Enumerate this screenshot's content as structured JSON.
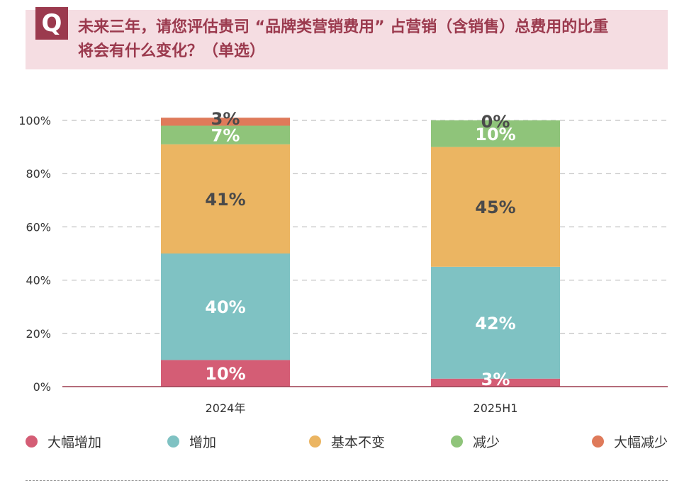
{
  "title": {
    "badge": "Q",
    "line1": "未来三年，请您评估贵司 “品牌类营销费用” 占营销（含销售）总费用的比重",
    "line2": "将会有什么变化？（单选）"
  },
  "chart_data": {
    "type": "bar",
    "stacked": true,
    "categories": [
      "2024年",
      "2025H1"
    ],
    "ylim": [
      0,
      100
    ],
    "yticks": [
      "0%",
      "20%",
      "40%",
      "60%",
      "80%",
      "100%"
    ],
    "grid": true,
    "legend_position": "bottom",
    "series": [
      {
        "name": "大幅增加",
        "values": [
          10,
          3
        ],
        "labels": [
          "10%",
          "3%"
        ],
        "color": "#d45d75",
        "label_color": "#ffffff"
      },
      {
        "name": "增加",
        "values": [
          40,
          42
        ],
        "labels": [
          "40%",
          "42%"
        ],
        "color": "#7fc2c3",
        "label_color": "#ffffff"
      },
      {
        "name": "基本不变",
        "values": [
          41,
          45
        ],
        "labels": [
          "41%",
          "45%"
        ],
        "color": "#ebb562",
        "label_color": "#4a4a4a"
      },
      {
        "name": "减少",
        "values": [
          7,
          10
        ],
        "labels": [
          "7%",
          "10%"
        ],
        "color": "#8fc47a",
        "label_color": "#ffffff"
      },
      {
        "name": "大幅减少",
        "values": [
          3,
          0
        ],
        "labels": [
          "3%",
          "0%"
        ],
        "color": "#df7a5a",
        "label_color": "#4a4a4a"
      }
    ]
  }
}
